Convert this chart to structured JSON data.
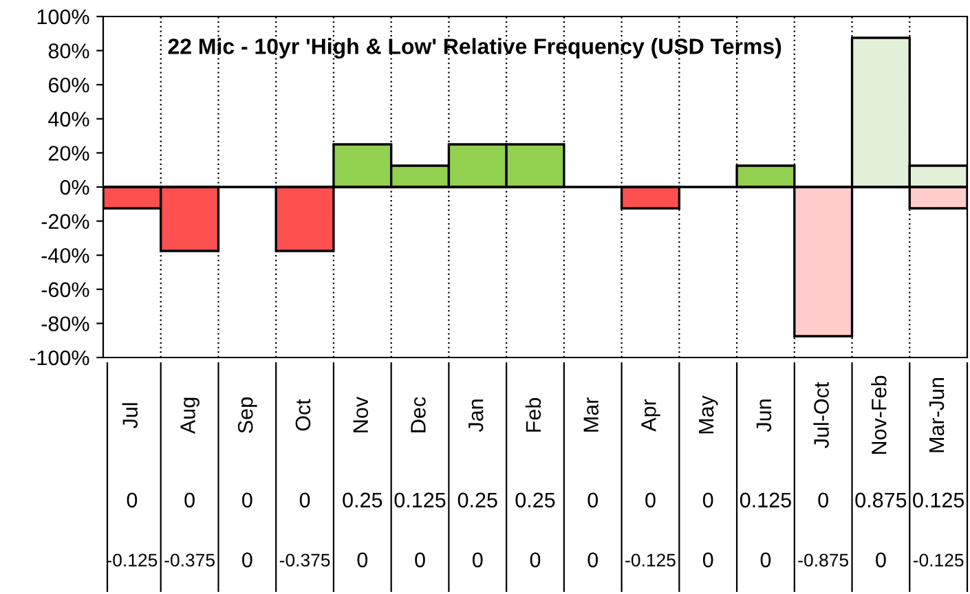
{
  "chart_data": {
    "type": "bar",
    "title": "22 Mic - 10yr 'High & Low' Relative Frequency (USD Terms)",
    "categories": [
      "Jul",
      "Aug",
      "Sep",
      "Oct",
      "Nov",
      "Dec",
      "Jan",
      "Feb",
      "Mar",
      "Apr",
      "May",
      "Jun",
      "Jul-Oct",
      "Nov-Feb",
      "Mar-Jun"
    ],
    "series": [
      {
        "colors": [
          "#92d050",
          "#92d050",
          "#92d050",
          "#92d050",
          "#92d050",
          "#92d050",
          "#92d050",
          "#92d050",
          "#92d050",
          "#92d050",
          "#92d050",
          "#92d050",
          "#e2f0d9",
          "#e2f0d9",
          "#e2f0d9"
        ],
        "values": [
          0,
          0,
          0,
          0,
          0.25,
          0.125,
          0.25,
          0.25,
          0,
          0,
          0,
          0.125,
          0,
          0.875,
          0.125
        ]
      },
      {
        "colors": [
          "#ff5050",
          "#ff5050",
          "#ff5050",
          "#ff5050",
          "#ff5050",
          "#ff5050",
          "#ff5050",
          "#ff5050",
          "#ff5050",
          "#ff5050",
          "#ff5050",
          "#ff5050",
          "#ffcccc",
          "#ffcccc",
          "#ffcccc"
        ],
        "values": [
          -0.125,
          -0.375,
          0,
          -0.375,
          0,
          0,
          0,
          0,
          0,
          -0.125,
          0,
          0,
          -0.875,
          0,
          -0.125
        ]
      }
    ],
    "ylim": [
      -1,
      1
    ],
    "yticks": [
      {
        "value": -1,
        "label": "-100%"
      },
      {
        "value": -0.8,
        "label": "-80%"
      },
      {
        "value": -0.6,
        "label": "-60%"
      },
      {
        "value": -0.4,
        "label": "-40%"
      },
      {
        "value": -0.2,
        "label": "-20%"
      },
      {
        "value": 0,
        "label": "0%"
      },
      {
        "value": 0.2,
        "label": "20%"
      },
      {
        "value": 0.4,
        "label": "40%"
      },
      {
        "value": 0.6,
        "label": "60%"
      },
      {
        "value": 0.8,
        "label": "80%"
      },
      {
        "value": 1,
        "label": "100%"
      }
    ],
    "grid": "x",
    "data_labels": true
  }
}
